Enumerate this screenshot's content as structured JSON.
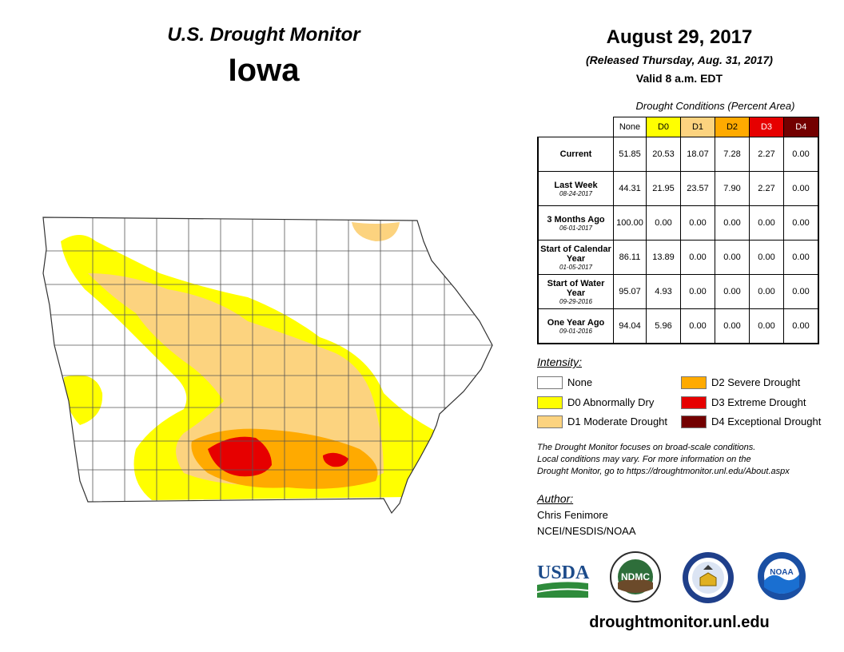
{
  "header": {
    "title": "U.S. Drought Monitor",
    "state": "Iowa",
    "date": "August 29, 2017",
    "released": "(Released Thursday, Aug. 31, 2017)",
    "valid": "Valid 8 a.m. EDT"
  },
  "table": {
    "caption": "Drought Conditions (Percent Area)",
    "columns": [
      "None",
      "D0",
      "D1",
      "D2",
      "D3",
      "D4"
    ],
    "column_colors": [
      "#ffffff",
      "#ffff00",
      "#fcd37f",
      "#ffaa00",
      "#e60000",
      "#730000"
    ],
    "rows": [
      {
        "label": "Current",
        "sub": "",
        "values": [
          "51.85",
          "20.53",
          "18.07",
          "7.28",
          "2.27",
          "0.00"
        ]
      },
      {
        "label": "Last Week",
        "sub": "08-24-2017",
        "values": [
          "44.31",
          "21.95",
          "23.57",
          "7.90",
          "2.27",
          "0.00"
        ]
      },
      {
        "label": "3 Months Ago",
        "sub": "06-01-2017",
        "values": [
          "100.00",
          "0.00",
          "0.00",
          "0.00",
          "0.00",
          "0.00"
        ]
      },
      {
        "label": "Start of Calendar Year",
        "sub": "01-05-2017",
        "values": [
          "86.11",
          "13.89",
          "0.00",
          "0.00",
          "0.00",
          "0.00"
        ]
      },
      {
        "label": "Start of Water Year",
        "sub": "09-29-2016",
        "values": [
          "95.07",
          "4.93",
          "0.00",
          "0.00",
          "0.00",
          "0.00"
        ]
      },
      {
        "label": "One Year Ago",
        "sub": "09-01-2016",
        "values": [
          "94.04",
          "5.96",
          "0.00",
          "0.00",
          "0.00",
          "0.00"
        ]
      }
    ]
  },
  "legend": {
    "title": "Intensity:",
    "items": [
      {
        "label": "None",
        "color": "#ffffff"
      },
      {
        "label": "D0 Abnormally Dry",
        "color": "#ffff00"
      },
      {
        "label": "D1 Moderate Drought",
        "color": "#fcd37f"
      },
      {
        "label": "D2 Severe Drought",
        "color": "#ffaa00"
      },
      {
        "label": "D3 Extreme Drought",
        "color": "#e60000"
      },
      {
        "label": "D4 Exceptional Drought",
        "color": "#730000"
      }
    ]
  },
  "note": {
    "line1": "The Drought Monitor focuses on broad-scale conditions.",
    "line2": "Local conditions may vary. For more information on the",
    "line3": "Drought Monitor, go to https://droughtmonitor.unl.edu/About.aspx"
  },
  "author": {
    "title": "Author:",
    "name": "Chris Fenimore",
    "org": "NCEI/NESDIS/NOAA"
  },
  "logos": {
    "usda": "USDA",
    "ndmc": "NDMC",
    "noaa": "NOAA"
  },
  "footer": {
    "website": "droughtmonitor.unl.edu"
  }
}
